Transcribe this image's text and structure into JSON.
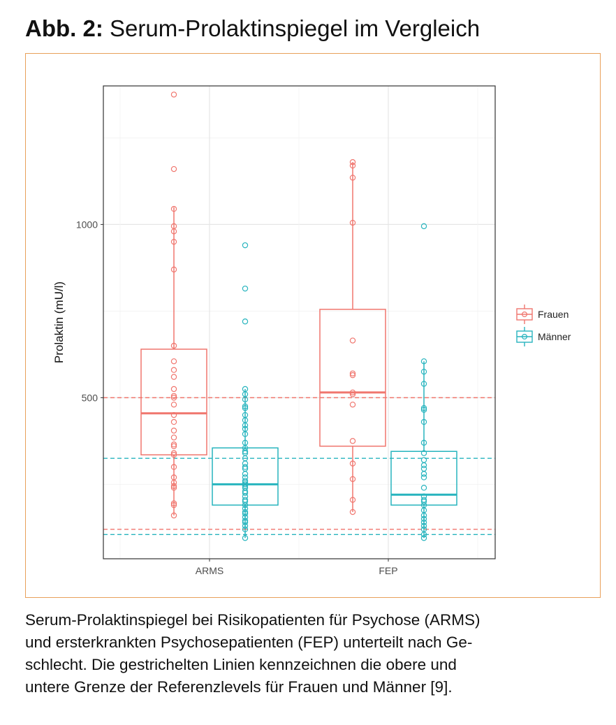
{
  "figure": {
    "label": "Abb. 2:",
    "title": "Serum-Prolaktinspiegel im Vergleich"
  },
  "caption": {
    "lines": [
      "Serum-Prolaktinspiegel bei Risikopatienten für Psychose (ARMS)",
      "und ersterkrankten Psychosepatienten (FEP) unterteilt nach Ge-",
      "schlecht. Die gestrichelten Linien kennzeichnen die obere und",
      "untere Grenze der Referenzlevels für Frauen und Männer [9]."
    ]
  },
  "colors": {
    "frauen": "#f0766e",
    "maenner": "#27b4be",
    "frame": "#e8a05a"
  },
  "chart_data": {
    "type": "box",
    "ylabel": "Prolaktin (mU/l)",
    "xlabel": "",
    "categories": [
      "ARMS",
      "FEP"
    ],
    "ylim": [
      35,
      1400
    ],
    "yticks": [
      500,
      1000
    ],
    "grid": true,
    "legend_position": "right",
    "series": [
      {
        "name": "Frauen",
        "color": "#f0766e",
        "boxes": [
          {
            "category": "ARMS",
            "whisker_low": 160,
            "q1": 335,
            "median": 455,
            "q3": 640,
            "whisker_high": 1050,
            "points": [
              1375,
              1160,
              1045,
              995,
              980,
              950,
              870,
              650,
              605,
              580,
              560,
              525,
              505,
              500,
              480,
              450,
              430,
              405,
              385,
              365,
              360,
              340,
              335,
              300,
              270,
              255,
              245,
              240,
              195,
              190,
              160
            ]
          },
          {
            "category": "FEP",
            "whisker_low": 170,
            "q1": 360,
            "median": 515,
            "q3": 755,
            "whisker_high": 1180,
            "points": [
              1180,
              1170,
              1135,
              1005,
              665,
              570,
              565,
              515,
              510,
              480,
              375,
              310,
              265,
              205,
              170
            ]
          }
        ],
        "reference_limits": {
          "upper": 500,
          "lower": 120
        }
      },
      {
        "name": "Männer",
        "color": "#27b4be",
        "boxes": [
          {
            "category": "ARMS",
            "whisker_low": 95,
            "q1": 190,
            "median": 250,
            "q3": 355,
            "whisker_high": 525,
            "points": [
              940,
              815,
              720,
              525,
              510,
              495,
              475,
              470,
              450,
              435,
              420,
              410,
              395,
              370,
              355,
              345,
              340,
              325,
              310,
              300,
              295,
              280,
              270,
              260,
              255,
              250,
              245,
              240,
              230,
              225,
              215,
              205,
              200,
              190,
              180,
              170,
              165,
              155,
              145,
              140,
              130,
              120,
              95
            ]
          },
          {
            "category": "FEP",
            "whisker_low": 95,
            "q1": 190,
            "median": 220,
            "q3": 345,
            "whisker_high": 605,
            "points": [
              995,
              605,
              575,
              540,
              470,
              465,
              430,
              370,
              340,
              320,
              305,
              295,
              280,
              270,
              240,
              215,
              205,
              200,
              190,
              175,
              160,
              150,
              140,
              130,
              120,
              105,
              95
            ]
          }
        ],
        "reference_limits": {
          "upper": 325,
          "lower": 105
        }
      }
    ]
  }
}
